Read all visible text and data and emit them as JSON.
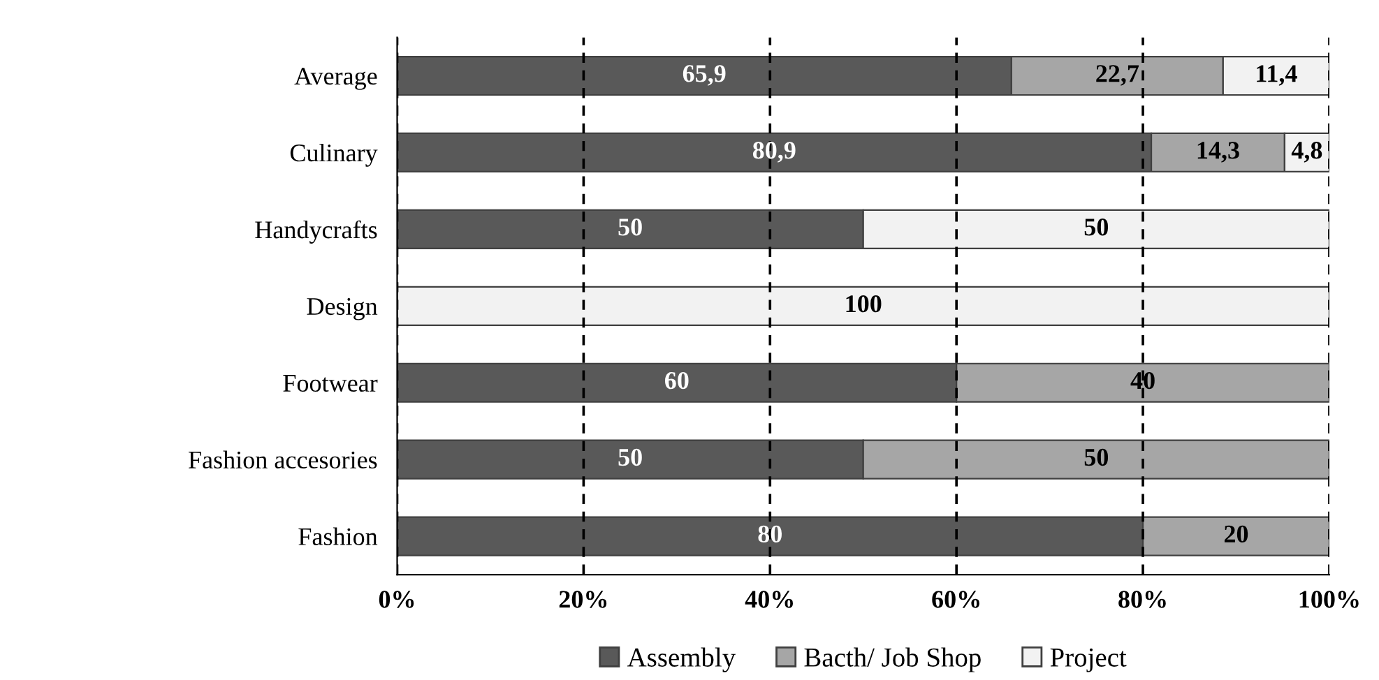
{
  "chart_data": {
    "type": "bar",
    "orientation": "horizontal",
    "stacked": true,
    "categories": [
      "Average",
      "Culinary",
      "Handycrafts",
      "Design",
      "Footwear",
      "Fashion accesories",
      "Fashion"
    ],
    "series": [
      {
        "name": "Assembly",
        "color": "#595959",
        "values": [
          65.9,
          80.9,
          50,
          null,
          60,
          50,
          80
        ],
        "value_labels": [
          "65,9",
          "80,9",
          "50",
          null,
          "60",
          "50",
          "80"
        ]
      },
      {
        "name": "Bacth/ Job Shop",
        "color": "#a6a6a6",
        "values": [
          22.7,
          14.3,
          null,
          null,
          40,
          50,
          20
        ],
        "value_labels": [
          "22,7",
          "14,3",
          null,
          null,
          "40",
          "50",
          "20"
        ]
      },
      {
        "name": "Project",
        "color": "#f2f2f2",
        "values": [
          11.4,
          4.8,
          50,
          100,
          null,
          null,
          null
        ],
        "value_labels": [
          "11,4",
          "4,8",
          "50",
          "100",
          null,
          null,
          null
        ]
      }
    ],
    "xlim": [
      0,
      100
    ],
    "xticks": [
      {
        "value": 0,
        "label": "0%"
      },
      {
        "value": 20,
        "label": "20%"
      },
      {
        "value": 40,
        "label": "40%"
      },
      {
        "value": 60,
        "label": "60%"
      },
      {
        "value": 80,
        "label": "80%"
      },
      {
        "value": 100,
        "label": "100%"
      }
    ],
    "grid": "x",
    "legend": "bottom"
  }
}
